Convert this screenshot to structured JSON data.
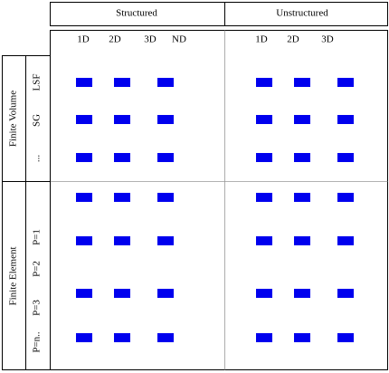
{
  "columns": [
    {
      "label": "Structured",
      "subcolumns": [
        "1D",
        "2D",
        "3D",
        "ND"
      ]
    },
    {
      "label": "Unstructured",
      "subcolumns": [
        "1D",
        "2D",
        "3D"
      ]
    }
  ],
  "row_groups": [
    {
      "label": "Finite Volume",
      "rows": [
        "LSF",
        "SG",
        "..."
      ]
    },
    {
      "label": "Finite Element",
      "rows": [
        "P=1",
        "P=2",
        "P=3",
        "P=n.."
      ]
    }
  ]
}
